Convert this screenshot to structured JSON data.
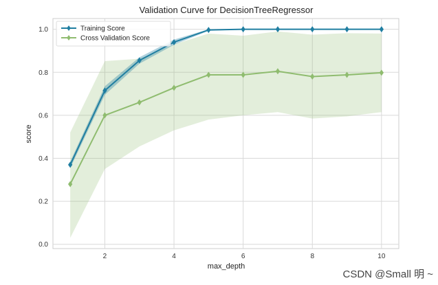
{
  "chart_data": {
    "type": "line",
    "title": "Validation Curve for DecisionTreeRegressor",
    "xlabel": "max_depth",
    "ylabel": "score",
    "xlim": [
      0.5,
      10.5
    ],
    "ylim": [
      -0.02,
      1.05
    ],
    "x_ticks": [
      2,
      4,
      6,
      8,
      10
    ],
    "y_ticks": [
      0.0,
      0.2,
      0.4,
      0.6,
      0.8,
      1.0
    ],
    "y_tick_labels": [
      "0.0",
      "0.2",
      "0.4",
      "0.6",
      "0.8",
      "1.0"
    ],
    "grid": true,
    "legend_position": "top-left",
    "x": [
      1,
      2,
      3,
      4,
      5,
      6,
      7,
      8,
      9,
      10
    ],
    "series": [
      {
        "name": "Training Score",
        "color": "#1f7ea1",
        "band_color": "#1f7ea1",
        "values": [
          0.37,
          0.715,
          0.855,
          0.94,
          0.997,
          1.0,
          1.0,
          1.0,
          1.0,
          1.0
        ],
        "band_lower": [
          0.355,
          0.695,
          0.84,
          0.928,
          0.993,
          0.999,
          1.0,
          1.0,
          1.0,
          1.0
        ],
        "band_upper": [
          0.385,
          0.735,
          0.87,
          0.952,
          1.0,
          1.0,
          1.0,
          1.0,
          1.0,
          1.0
        ]
      },
      {
        "name": "Cross Validation Score",
        "color": "#8fbc6f",
        "band_color": "#8fbc6f",
        "values": [
          0.28,
          0.6,
          0.66,
          0.728,
          0.788,
          0.788,
          0.805,
          0.78,
          0.788,
          0.798
        ],
        "band_lower": [
          0.03,
          0.35,
          0.455,
          0.53,
          0.58,
          0.6,
          0.615,
          0.585,
          0.595,
          0.615
        ],
        "band_upper": [
          0.52,
          0.852,
          0.863,
          0.93,
          0.98,
          0.97,
          0.99,
          0.975,
          0.982,
          0.98
        ]
      }
    ]
  },
  "watermark": "CSDN @Small  明 ~"
}
